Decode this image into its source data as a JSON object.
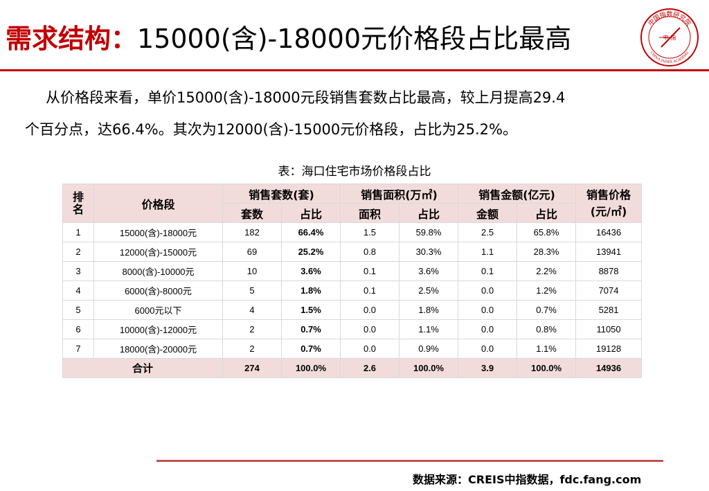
{
  "title": {
    "prefix": "需求结构：",
    "main": "15000(含)-18000元价格段占比最高"
  },
  "logo": {
    "center_text": "中 指",
    "top_text": "中国指数研究院",
    "bottom_text": "CHINA INDEX ACADEMY"
  },
  "paragraph": {
    "line1": "从价格段来看，单价15000(含)-18000元段销售套数占比最高，较上月提高29.4",
    "line2": "个百分点，达66.4%。其次为12000(含)-15000元价格段，占比为25.2%。"
  },
  "table": {
    "caption": "表：海口住宅市场价格段占比",
    "headers": {
      "rank": "排名",
      "segment": "价格段",
      "units": "销售套数(套)",
      "area": "销售面积(万㎡)",
      "amount": "销售金额(亿元)",
      "price": "销售价格(元/㎡)",
      "units_count": "套数",
      "units_share": "占比",
      "area_value": "面积",
      "area_share": "占比",
      "amount_value": "金额",
      "amount_share": "占比"
    },
    "rows": [
      {
        "rank": "1",
        "segment": "15000(含)-18000元",
        "units": "182",
        "units_share": "66.4%",
        "area": "1.5",
        "area_share": "59.8%",
        "amount": "2.5",
        "amount_share": "65.8%",
        "price": "16436"
      },
      {
        "rank": "2",
        "segment": "12000(含)-15000元",
        "units": "69",
        "units_share": "25.2%",
        "area": "0.8",
        "area_share": "30.3%",
        "amount": "1.1",
        "amount_share": "28.3%",
        "price": "13941"
      },
      {
        "rank": "3",
        "segment": "8000(含)-10000元",
        "units": "10",
        "units_share": "3.6%",
        "area": "0.1",
        "area_share": "3.6%",
        "amount": "0.1",
        "amount_share": "2.2%",
        "price": "8878"
      },
      {
        "rank": "4",
        "segment": "6000(含)-8000元",
        "units": "5",
        "units_share": "1.8%",
        "area": "0.1",
        "area_share": "2.5%",
        "amount": "0.0",
        "amount_share": "1.2%",
        "price": "7074"
      },
      {
        "rank": "5",
        "segment": "6000元以下",
        "units": "4",
        "units_share": "1.5%",
        "area": "0.0",
        "area_share": "1.8%",
        "amount": "0.0",
        "amount_share": "0.7%",
        "price": "5281"
      },
      {
        "rank": "6",
        "segment": "10000(含)-12000元",
        "units": "2",
        "units_share": "0.7%",
        "area": "0.0",
        "area_share": "1.1%",
        "amount": "0.0",
        "amount_share": "0.8%",
        "price": "11050"
      },
      {
        "rank": "7",
        "segment": "18000(含)-20000元",
        "units": "2",
        "units_share": "0.7%",
        "area": "0.0",
        "area_share": "0.9%",
        "amount": "0.0",
        "amount_share": "1.1%",
        "price": "19128"
      }
    ],
    "total": {
      "label": "合计",
      "units": "274",
      "units_share": "100.0%",
      "area": "2.6",
      "area_share": "100.0%",
      "amount": "3.9",
      "amount_share": "100.0%",
      "price": "14936"
    }
  },
  "source": "数据来源：CREIS中指数据，fdc.fang.com",
  "colors": {
    "accent": "#c00000",
    "header_fill": "#f2dcdb",
    "footer_rule": "#c0504d"
  }
}
